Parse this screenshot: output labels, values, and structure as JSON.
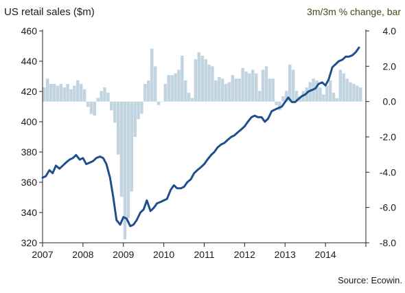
{
  "chart_data": {
    "type": "bar+line",
    "title_left": "US retail sales ($m)",
    "title_right": "3m/3m  % change, bar",
    "source": "Source: Ecowin.",
    "x_ticks": [
      "2007",
      "2008",
      "2009",
      "2010",
      "2011",
      "2012",
      "2013",
      "2014"
    ],
    "y_left": {
      "ticks": [
        "460",
        "440",
        "420",
        "400",
        "380",
        "360",
        "340",
        "320"
      ],
      "lim": [
        320,
        460
      ]
    },
    "y_right": {
      "ticks": [
        "4.0",
        "2.0",
        "0.0",
        "-2.0",
        "-4.0",
        "-6.0",
        "-8.0"
      ],
      "lim": [
        -8,
        4
      ]
    },
    "bar_color": "#c2d4e0",
    "line_color": "#1f4e8c",
    "bars": {
      "name": "3m/3m % change",
      "x_start": 2007.0,
      "step": 0.0833,
      "values": [
        0.8,
        1.3,
        1.0,
        1.0,
        0.9,
        1.0,
        0.8,
        1.0,
        0.7,
        0.9,
        1.2,
        1.0,
        0.7,
        -0.3,
        -0.7,
        -0.8,
        0.2,
        0.6,
        0.8,
        0.5,
        -0.5,
        -1.2,
        -3.0,
        -5.4,
        -7.8,
        -6.6,
        -5.1,
        -2.0,
        -1.0,
        -0.7,
        1.0,
        1.2,
        3.0,
        2.0,
        -0.2,
        0.0,
        1.0,
        1.5,
        1.5,
        1.6,
        1.8,
        2.6,
        1.2,
        0.5,
        0.2,
        2.4,
        2.8,
        2.6,
        2.4,
        2.1,
        2.0,
        1.2,
        1.4,
        1.3,
        1.0,
        1.1,
        1.5,
        1.3,
        1.3,
        1.9,
        1.7,
        1.6,
        1.8,
        1.6,
        0.6,
        1.8,
        2.0,
        1.3,
        1.3,
        -0.2,
        -0.5,
        0.3,
        0.6,
        2.1,
        1.8,
        0.6,
        0.3,
        0.6,
        0.8,
        1.1,
        1.3,
        1.2,
        0.8,
        0.4,
        0.9,
        1.2,
        0.5,
        0.2,
        1.8,
        1.6,
        1.3,
        1.1,
        1.0,
        0.9,
        0.8
      ]
    },
    "line": {
      "name": "US retail sales ($m)",
      "points": [
        [
          2007.0,
          363
        ],
        [
          2007.08,
          364
        ],
        [
          2007.17,
          368
        ],
        [
          2007.25,
          366
        ],
        [
          2007.33,
          371
        ],
        [
          2007.42,
          369
        ],
        [
          2007.5,
          371
        ],
        [
          2007.58,
          373
        ],
        [
          2007.67,
          375
        ],
        [
          2007.75,
          376
        ],
        [
          2007.83,
          378
        ],
        [
          2007.92,
          375
        ],
        [
          2008.0,
          376
        ],
        [
          2008.08,
          372
        ],
        [
          2008.17,
          373
        ],
        [
          2008.25,
          374
        ],
        [
          2008.33,
          376
        ],
        [
          2008.42,
          377
        ],
        [
          2008.5,
          376
        ],
        [
          2008.58,
          372
        ],
        [
          2008.67,
          363
        ],
        [
          2008.75,
          350
        ],
        [
          2008.83,
          335
        ],
        [
          2008.92,
          332
        ],
        [
          2009.0,
          337
        ],
        [
          2009.08,
          336
        ],
        [
          2009.17,
          331
        ],
        [
          2009.25,
          332
        ],
        [
          2009.33,
          335
        ],
        [
          2009.42,
          340
        ],
        [
          2009.5,
          342
        ],
        [
          2009.58,
          348
        ],
        [
          2009.67,
          341
        ],
        [
          2009.75,
          343
        ],
        [
          2009.83,
          346
        ],
        [
          2009.92,
          347
        ],
        [
          2010.0,
          348
        ],
        [
          2010.08,
          349
        ],
        [
          2010.17,
          355
        ],
        [
          2010.25,
          358
        ],
        [
          2010.33,
          356
        ],
        [
          2010.42,
          356
        ],
        [
          2010.5,
          357
        ],
        [
          2010.58,
          360
        ],
        [
          2010.67,
          362
        ],
        [
          2010.75,
          366
        ],
        [
          2010.83,
          368
        ],
        [
          2010.92,
          370
        ],
        [
          2011.0,
          372
        ],
        [
          2011.08,
          375
        ],
        [
          2011.17,
          378
        ],
        [
          2011.25,
          380
        ],
        [
          2011.33,
          383
        ],
        [
          2011.42,
          385
        ],
        [
          2011.5,
          386
        ],
        [
          2011.58,
          388
        ],
        [
          2011.67,
          390
        ],
        [
          2011.75,
          391
        ],
        [
          2011.83,
          393
        ],
        [
          2011.92,
          395
        ],
        [
          2012.0,
          397
        ],
        [
          2012.08,
          400
        ],
        [
          2012.17,
          403
        ],
        [
          2012.25,
          404
        ],
        [
          2012.33,
          403
        ],
        [
          2012.42,
          403
        ],
        [
          2012.5,
          400
        ],
        [
          2012.58,
          402
        ],
        [
          2012.67,
          407
        ],
        [
          2012.75,
          408
        ],
        [
          2012.83,
          409
        ],
        [
          2012.92,
          410
        ],
        [
          2013.0,
          413
        ],
        [
          2013.08,
          416
        ],
        [
          2013.17,
          413
        ],
        [
          2013.25,
          413
        ],
        [
          2013.33,
          415
        ],
        [
          2013.42,
          417
        ],
        [
          2013.5,
          418
        ],
        [
          2013.58,
          420
        ],
        [
          2013.67,
          421
        ],
        [
          2013.75,
          422
        ],
        [
          2013.83,
          425
        ],
        [
          2013.92,
          426
        ],
        [
          2014.0,
          424
        ],
        [
          2014.08,
          428
        ],
        [
          2014.17,
          436
        ],
        [
          2014.25,
          438
        ],
        [
          2014.33,
          440
        ],
        [
          2014.42,
          441
        ],
        [
          2014.5,
          443
        ],
        [
          2014.58,
          443
        ],
        [
          2014.67,
          444
        ],
        [
          2014.75,
          446
        ],
        [
          2014.83,
          449
        ]
      ]
    }
  }
}
